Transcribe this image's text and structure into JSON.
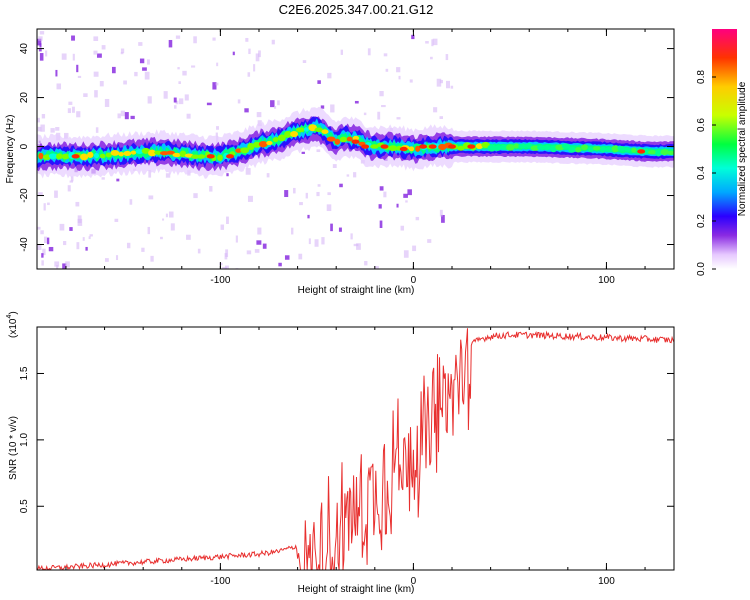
{
  "title": "C2E6.2025.347.00.21.G12",
  "chart_data": [
    {
      "type": "heatmap",
      "title": "C2E6.2025.347.00.21.G12",
      "xlabel": "Height of straight line (km)",
      "ylabel": "Frequency (Hz)",
      "xlim": [
        -195,
        135
      ],
      "ylim": [
        -50,
        48
      ],
      "x_ticks": [
        -100,
        0,
        100
      ],
      "x_tick_labels": [
        "-100",
        "0",
        "100"
      ],
      "y_ticks": [
        -40,
        -20,
        0,
        20,
        40
      ],
      "y_tick_labels": [
        "-40",
        "-20",
        "0",
        "20",
        "40"
      ],
      "colorbar": {
        "label": "Normalized spectral amplitude",
        "range": [
          0,
          1
        ],
        "ticks": [
          0.0,
          0.2,
          0.4,
          0.6,
          0.8
        ],
        "tick_labels": [
          "0.0",
          "0.2",
          "0.4",
          "0.6",
          "0.8"
        ]
      },
      "ridge": {
        "x": [
          -195,
          -170,
          -150,
          -130,
          -110,
          -100,
          -90,
          -80,
          -70,
          -60,
          -50,
          -45,
          -40,
          -35,
          -30,
          -25,
          -20,
          -10,
          0,
          10,
          30,
          60,
          100,
          120,
          135
        ],
        "freq": [
          -4,
          -4,
          -3,
          -2,
          -4,
          -4,
          -2,
          1,
          3,
          6,
          8,
          5,
          2,
          4,
          3,
          1,
          0,
          0,
          -1,
          0,
          0,
          0,
          -1,
          -2,
          -2
        ]
      }
    },
    {
      "type": "line",
      "xlabel": "Height of straight line (km)",
      "ylabel": "SNR (10 * v/v)",
      "y_multiplier": "(x10",
      "y_multiplier_exponent": "4",
      "y_multiplier_close": ")",
      "xlim": [
        -195,
        135
      ],
      "ylim": [
        0.02,
        1.85
      ],
      "x_ticks": [
        -100,
        0,
        100
      ],
      "x_tick_labels": [
        "-100",
        "0",
        "100"
      ],
      "y_ticks": [
        0.5,
        1.0,
        1.5
      ],
      "y_tick_labels": [
        "0.5",
        "1.0",
        "1.5"
      ],
      "line_color": "#e8302f",
      "series": [
        {
          "name": "SNR",
          "x": [
            -195,
            -180,
            -160,
            -140,
            -120,
            -100,
            -90,
            -80,
            -70,
            -60,
            -55,
            -50,
            -45,
            -40,
            -35,
            -30,
            -25,
            -20,
            -15,
            -10,
            -5,
            0,
            5,
            10,
            15,
            20,
            25,
            30,
            35,
            40,
            50,
            60,
            80,
            100,
            120,
            135
          ],
          "values": [
            0.03,
            0.04,
            0.06,
            0.08,
            0.1,
            0.12,
            0.13,
            0.14,
            0.16,
            0.2,
            0.28,
            0.25,
            0.38,
            0.45,
            0.55,
            0.6,
            0.7,
            0.78,
            0.85,
            0.95,
            1.02,
            1.08,
            1.15,
            1.25,
            1.4,
            1.55,
            1.65,
            1.72,
            1.76,
            1.78,
            1.79,
            1.79,
            1.78,
            1.77,
            1.76,
            1.75
          ]
        }
      ]
    }
  ]
}
